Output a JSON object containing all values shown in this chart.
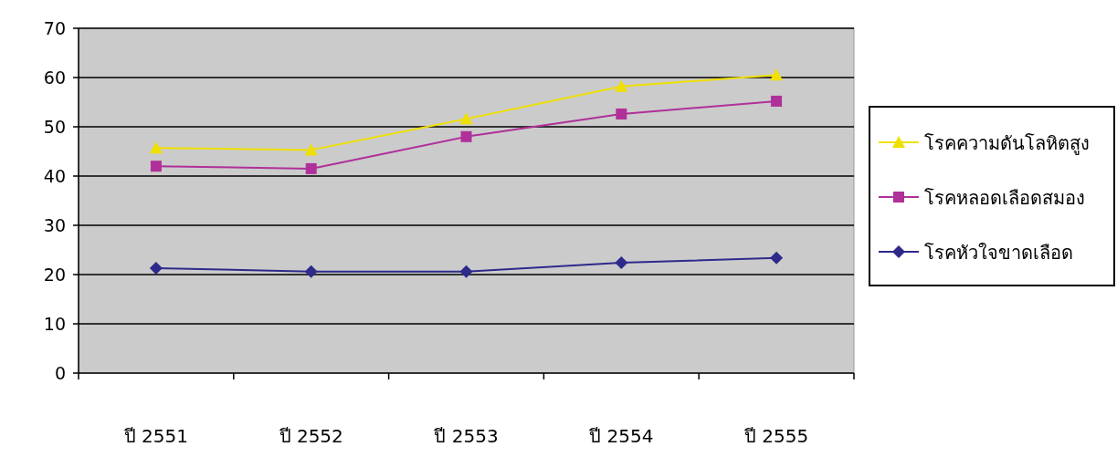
{
  "chart_data": {
    "type": "line",
    "categories": [
      "ปี 2551",
      "ปี 2552",
      "ปี 2553",
      "ปี 2554",
      "ปี 2555"
    ],
    "series": [
      {
        "name": "โรคความดันโลหิตสูง",
        "color": "#f0e000",
        "marker": "triangle",
        "values": [
          45.7,
          45.3,
          51.6,
          58.2,
          60.5
        ]
      },
      {
        "name": "โรคหลอดเลือดสมอง",
        "color": "#b0309a",
        "marker": "square",
        "values": [
          42,
          41.5,
          48,
          52.6,
          55.2
        ]
      },
      {
        "name": "โรคหัวใจขาดเลือด",
        "color": "#2e2a8c",
        "marker": "diamond",
        "values": [
          21.3,
          20.6,
          20.6,
          22.4,
          23.4
        ]
      }
    ],
    "ylim": [
      0,
      70
    ],
    "yticks": [
      0,
      10,
      20,
      30,
      40,
      50,
      60,
      70
    ],
    "grid": "y",
    "legend": "right"
  }
}
